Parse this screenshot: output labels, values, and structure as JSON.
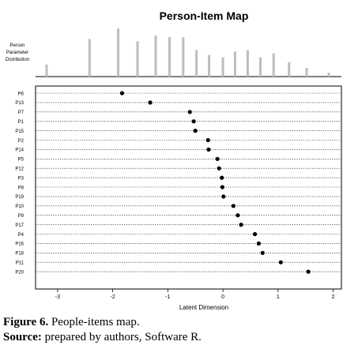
{
  "chart_data": {
    "type": "scatter",
    "title": "Person-Item Map",
    "histogram_label": [
      "Person",
      "Parameter",
      "Distribution"
    ],
    "xlabel": "Latent Dimension",
    "xlim": [
      -3.4,
      2.15
    ],
    "x_ticks": [
      -3,
      -2,
      -1,
      0,
      1,
      2
    ],
    "person_distribution": {
      "x": [
        -3.2,
        -2.42,
        -1.9,
        -1.55,
        -1.22,
        -0.97,
        -0.72,
        -0.48,
        -0.25,
        0.0,
        0.22,
        0.45,
        0.68,
        0.92,
        1.2,
        1.52,
        1.92
      ],
      "relative_height": [
        0.25,
        0.78,
        1.0,
        0.73,
        0.85,
        0.82,
        0.82,
        0.55,
        0.45,
        0.4,
        0.52,
        0.55,
        0.4,
        0.48,
        0.3,
        0.18,
        0.08
      ]
    },
    "items": [
      {
        "label": "P6",
        "value": -1.83
      },
      {
        "label": "P13",
        "value": -1.32
      },
      {
        "label": "P7",
        "value": -0.6
      },
      {
        "label": "P1",
        "value": -0.53
      },
      {
        "label": "P15",
        "value": -0.5
      },
      {
        "label": "P2",
        "value": -0.27
      },
      {
        "label": "P14",
        "value": -0.26
      },
      {
        "label": "P5",
        "value": -0.1
      },
      {
        "label": "P12",
        "value": -0.07
      },
      {
        "label": "P3",
        "value": -0.02
      },
      {
        "label": "P8",
        "value": -0.01
      },
      {
        "label": "P19",
        "value": 0.01
      },
      {
        "label": "P10",
        "value": 0.19
      },
      {
        "label": "P9",
        "value": 0.27
      },
      {
        "label": "P17",
        "value": 0.33
      },
      {
        "label": "P4",
        "value": 0.58
      },
      {
        "label": "P16",
        "value": 0.65
      },
      {
        "label": "P18",
        "value": 0.72
      },
      {
        "label": "P11",
        "value": 1.05
      },
      {
        "label": "P20",
        "value": 1.55
      }
    ],
    "colors": {
      "bars": "#bdbdbd",
      "points": "#000000",
      "grid": "#000000"
    }
  },
  "caption": {
    "figure_label": "Figure 6.",
    "figure_text": " People-items map.",
    "source_label": "Source:",
    "source_text": " prepared by authors, Software R."
  }
}
